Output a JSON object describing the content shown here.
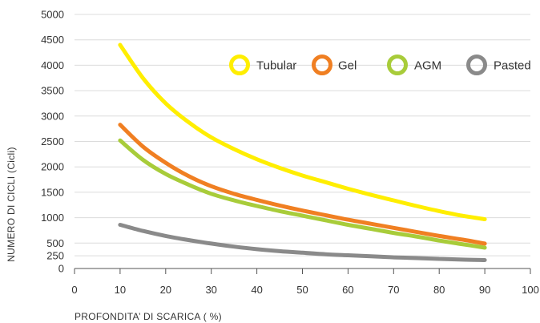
{
  "chart_data": {
    "type": "line",
    "title": "",
    "xlabel": "PROFONDITA’ DI SCARICA ( %)",
    "ylabel": "NUMERO DI CICLI (Cicli)",
    "xlim": [
      0,
      100
    ],
    "ylim": [
      0,
      5000
    ],
    "x_ticks": [
      0,
      10,
      20,
      30,
      40,
      50,
      60,
      70,
      80,
      90,
      100
    ],
    "y_ticks": [
      0,
      250,
      500,
      1000,
      1500,
      2000,
      2500,
      3000,
      3500,
      4000,
      4500,
      5000
    ],
    "grid": "horizontal",
    "legend_position": "top-right",
    "series": [
      {
        "name": "Tubular",
        "color": "#ffee00",
        "x": [
          10,
          15,
          20,
          25,
          30,
          35,
          40,
          45,
          50,
          55,
          60,
          65,
          70,
          75,
          80,
          85,
          90
        ],
        "values": [
          4400,
          3750,
          3250,
          2880,
          2580,
          2350,
          2150,
          1980,
          1830,
          1700,
          1570,
          1450,
          1340,
          1230,
          1130,
          1040,
          970
        ]
      },
      {
        "name": "Gel",
        "color": "#f07f22",
        "x": [
          10,
          15,
          20,
          25,
          30,
          35,
          40,
          45,
          50,
          55,
          60,
          65,
          70,
          75,
          80,
          85,
          90
        ],
        "values": [
          2830,
          2400,
          2080,
          1820,
          1620,
          1470,
          1350,
          1240,
          1140,
          1050,
          960,
          880,
          800,
          720,
          640,
          570,
          490
        ]
      },
      {
        "name": "AGM",
        "color": "#a8cc3a",
        "x": [
          10,
          15,
          20,
          25,
          30,
          35,
          40,
          45,
          50,
          55,
          60,
          65,
          70,
          75,
          80,
          85,
          90
        ],
        "values": [
          2520,
          2140,
          1860,
          1650,
          1470,
          1340,
          1230,
          1130,
          1040,
          950,
          860,
          780,
          700,
          630,
          550,
          480,
          410
        ]
      },
      {
        "name": "Pasted",
        "color": "#8a8a8a",
        "x": [
          10,
          15,
          20,
          25,
          30,
          35,
          40,
          45,
          50,
          55,
          60,
          65,
          70,
          75,
          80,
          85,
          90
        ],
        "values": [
          860,
          740,
          640,
          560,
          490,
          430,
          380,
          340,
          310,
          280,
          260,
          240,
          220,
          205,
          190,
          175,
          165
        ]
      }
    ]
  }
}
